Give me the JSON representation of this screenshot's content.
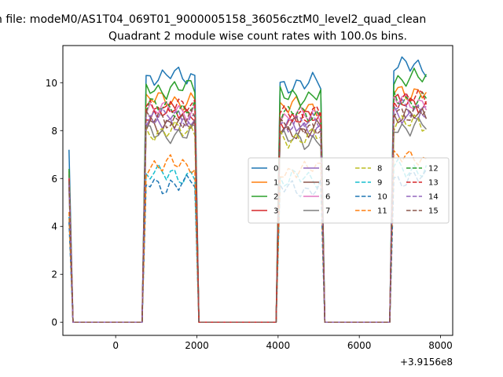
{
  "figure": {
    "suptitle": "n file: modeM0/AS1T04_069T01_9000005158_36056cztM0_level2_quad_clean",
    "title": "Quadrant 2 module wise count rates with 100.0s bins.",
    "offset_label": "+3.9156e8"
  },
  "chart_data": {
    "type": "line",
    "title": "Quadrant 2 module wise count rates with 100.0s bins.",
    "xlabel": "",
    "ylabel": "",
    "x_offset": 391560000,
    "xlim": [
      -1300,
      8300
    ],
    "ylim": [
      -0.55,
      11.55
    ],
    "xticks": [
      0,
      2000,
      4000,
      6000,
      8000
    ],
    "xtick_labels": [
      "0",
      "2000",
      "4000",
      "6000",
      "8000"
    ],
    "yticks": [
      0,
      2,
      4,
      6,
      8,
      10
    ],
    "ytick_labels": [
      "0",
      "2",
      "4",
      "6",
      "8",
      "10"
    ],
    "legend": {
      "position": "center-right",
      "columns": 4
    },
    "grid": false,
    "x": [
      -1150,
      -1050,
      -950,
      -850,
      -750,
      -650,
      -550,
      -450,
      -350,
      -250,
      -150,
      -50,
      50,
      150,
      250,
      350,
      450,
      550,
      650,
      750,
      850,
      950,
      1050,
      1150,
      1250,
      1350,
      1450,
      1550,
      1650,
      1750,
      1850,
      1950,
      2050,
      2150,
      2250,
      2350,
      2450,
      2550,
      2650,
      2750,
      2850,
      2950,
      3050,
      3150,
      3250,
      3350,
      3450,
      3550,
      3650,
      3750,
      3850,
      3950,
      4050,
      4150,
      4250,
      4350,
      4450,
      4550,
      4650,
      4750,
      4850,
      4950,
      5050,
      5150,
      5250,
      5350,
      5450,
      5550,
      5650,
      5750,
      5850,
      5950,
      6050,
      6150,
      6250,
      6350,
      6450,
      6550,
      6650,
      6750,
      6850,
      6950,
      7050,
      7150,
      7250,
      7350,
      7450,
      7550,
      7650
    ],
    "active_windows": [
      [
        675,
        1975
      ],
      [
        3975,
        5075
      ],
      [
        6775,
        7675
      ]
    ],
    "series": [
      {
        "name": "0",
        "style": "solid",
        "color": "#1f77b4",
        "base": 10.3,
        "start": 7.2,
        "peaks": [
          10.7,
          9.9,
          10.9
        ]
      },
      {
        "name": "1",
        "style": "solid",
        "color": "#ff7f0e",
        "base": 9.3,
        "start": 6.3,
        "peaks": [
          9.4,
          9.2,
          10.1
        ]
      },
      {
        "name": "2",
        "style": "solid",
        "color": "#2ca02c",
        "base": 9.8,
        "start": 6.4,
        "peaks": [
          10.6,
          9.8,
          10.7
        ]
      },
      {
        "name": "3",
        "style": "solid",
        "color": "#d62728",
        "base": 8.8,
        "start": 6.1,
        "peaks": [
          9.1,
          9.2,
          10.2
        ]
      },
      {
        "name": "4",
        "style": "solid",
        "color": "#9467bd",
        "base": 8.4,
        "start": 5.8,
        "peaks": [
          8.9,
          8.7,
          9.6
        ]
      },
      {
        "name": "5",
        "style": "solid",
        "color": "#8c564b",
        "base": 8.3,
        "start": 5.9,
        "peaks": [
          8.7,
          8.5,
          9.2
        ]
      },
      {
        "name": "6",
        "style": "solid",
        "color": "#e377c2",
        "base": 8.9,
        "start": 6.2,
        "peaks": [
          9.3,
          9.0,
          10.0
        ]
      },
      {
        "name": "7",
        "style": "solid",
        "color": "#7f7f7f",
        "base": 7.9,
        "start": 5.6,
        "peaks": [
          8.3,
          8.0,
          8.9
        ]
      },
      {
        "name": "8",
        "style": "dashed",
        "color": "#bcbd22",
        "base": 8.0,
        "start": 5.7,
        "peaks": [
          8.3,
          7.9,
          8.8
        ]
      },
      {
        "name": "9",
        "style": "dashed",
        "color": "#17becf",
        "base": 6.2,
        "start": 4.4,
        "peaks": [
          6.6,
          6.5,
          7.4
        ]
      },
      {
        "name": "10",
        "style": "dashed",
        "color": "#1f77b4",
        "base": 5.8,
        "start": 4.2,
        "peaks": [
          6.4,
          6.2,
          7.6
        ]
      },
      {
        "name": "11",
        "style": "dashed",
        "color": "#ff7f0e",
        "base": 6.6,
        "start": 4.6,
        "peaks": [
          6.9,
          7.6,
          7.6
        ]
      },
      {
        "name": "12",
        "style": "dashed",
        "color": "#2ca02c",
        "base": 9.0,
        "start": 6.2,
        "peaks": [
          9.5,
          9.1,
          10.3
        ]
      },
      {
        "name": "13",
        "style": "dashed",
        "color": "#d62728",
        "base": 9.0,
        "start": 6.0,
        "peaks": [
          9.4,
          9.3,
          10.2
        ]
      },
      {
        "name": "14",
        "style": "dashed",
        "color": "#9467bd",
        "base": 8.6,
        "start": 5.8,
        "peaks": [
          9.0,
          8.8,
          9.8
        ]
      },
      {
        "name": "15",
        "style": "dashed",
        "color": "#8c564b",
        "base": 8.5,
        "start": 5.9,
        "peaks": [
          8.8,
          8.8,
          9.5
        ]
      }
    ]
  }
}
